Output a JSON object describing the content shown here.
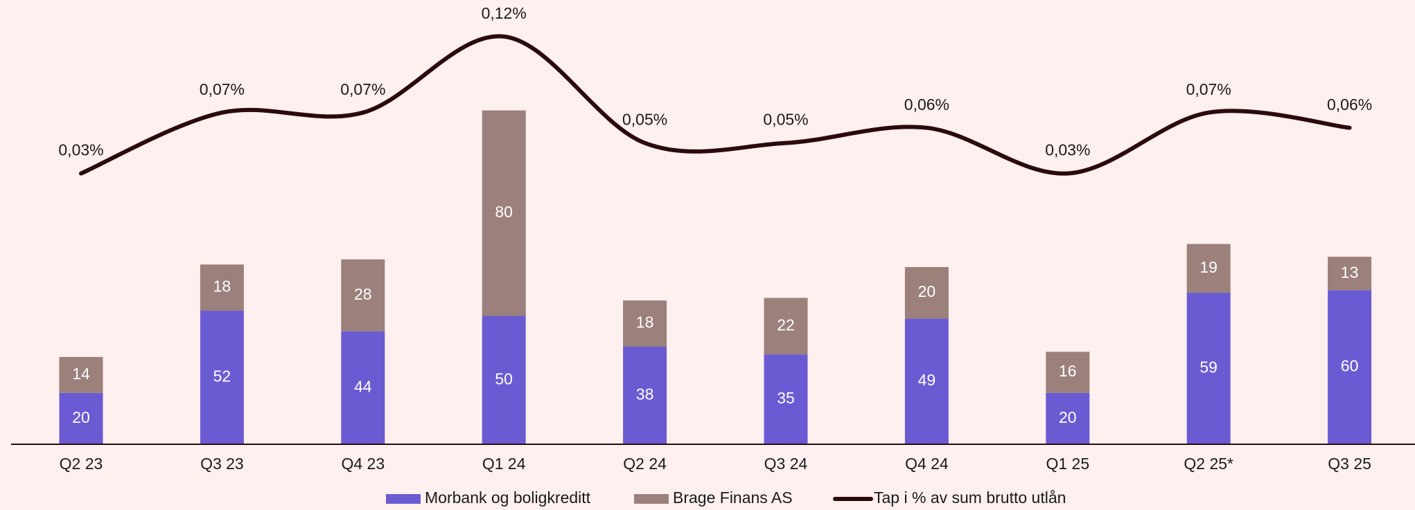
{
  "chart_data": {
    "type": "bar",
    "stacked": true,
    "categories": [
      "Q2 23",
      "Q3 23",
      "Q4 23",
      "Q1 24",
      "Q2 24",
      "Q3 24",
      "Q4 24",
      "Q1 25",
      "Q2 25*",
      "Q3 25"
    ],
    "series": [
      {
        "name": "Morbank og boligkreditt",
        "color": "#6b5bd2",
        "values": [
          20,
          52,
          44,
          50,
          38,
          35,
          49,
          20,
          59,
          60
        ]
      },
      {
        "name": "Brage Finans AS",
        "color": "#9b807b",
        "values": [
          14,
          18,
          28,
          80,
          18,
          22,
          20,
          16,
          19,
          13
        ]
      },
      {
        "name": "Tap i % av sum brutto utlån",
        "color": "#2b0a0c",
        "type": "line",
        "axis": "y2",
        "values": [
          0.03,
          0.07,
          0.07,
          0.12,
          0.05,
          0.05,
          0.06,
          0.03,
          0.07,
          0.06
        ],
        "value_labels": [
          "0,03%",
          "0,07%",
          "0,07%",
          "0,12%",
          "0,05%",
          "0,05%",
          "0,06%",
          "0,03%",
          "0,07%",
          "0,06%"
        ]
      }
    ],
    "ylim": [
      0,
      173
    ],
    "y2lim": [
      -0.148,
      0.144
    ],
    "legend": "bottom"
  }
}
